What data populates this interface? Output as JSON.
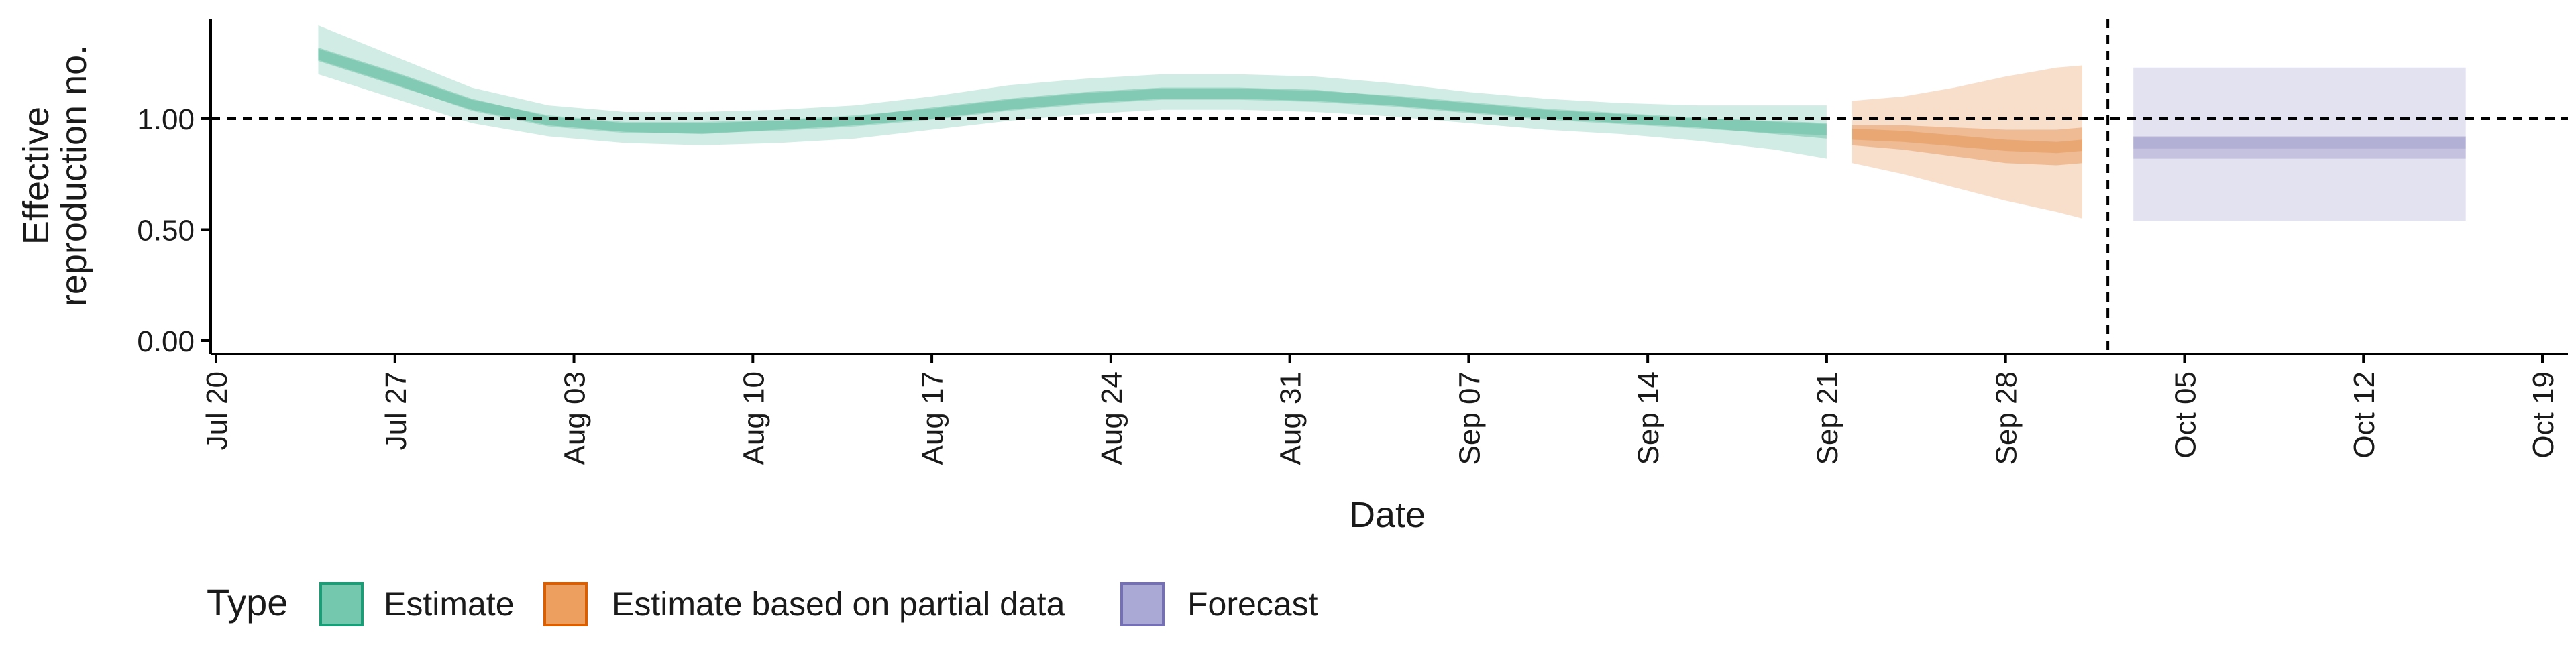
{
  "chart_data": {
    "type": "area",
    "xlabel": "Date",
    "ylabel_lines": [
      "Effective",
      "reproduction no."
    ],
    "y_ticks": [
      "0.00",
      "0.50",
      "1.00"
    ],
    "ylim": [
      0,
      1.45
    ],
    "x_ticks": [
      "Jul 20",
      "Jul 27",
      "Aug 03",
      "Aug 10",
      "Aug 17",
      "Aug 24",
      "Aug 31",
      "Sep 07",
      "Sep 14",
      "Sep 21",
      "Sep 28",
      "Oct 05",
      "Oct 12",
      "Oct 19"
    ],
    "x_range_days": [
      "2020-07-20",
      "2020-10-19"
    ],
    "reference_line_y": 1.0,
    "vertical_line_date": "2020-10-02",
    "grid": false,
    "legend": {
      "title": "Type",
      "position": "bottom-left",
      "entries": [
        "Estimate",
        "Estimate based on partial data",
        "Forecast"
      ]
    },
    "colors": {
      "Estimate": "#1b9e77",
      "Estimate based on partial data": "#d95f02",
      "Forecast": "#7570b3"
    },
    "series": [
      {
        "name": "Estimate",
        "x": [
          "2020-07-24",
          "2020-07-27",
          "2020-07-30",
          "2020-08-02",
          "2020-08-05",
          "2020-08-08",
          "2020-08-11",
          "2020-08-14",
          "2020-08-17",
          "2020-08-20",
          "2020-08-23",
          "2020-08-26",
          "2020-08-29",
          "2020-09-01",
          "2020-09-04",
          "2020-09-07",
          "2020-09-10",
          "2020-09-13",
          "2020-09-16",
          "2020-09-19",
          "2020-09-21"
        ],
        "median": [
          1.29,
          1.18,
          1.06,
          0.99,
          0.96,
          0.96,
          0.97,
          0.99,
          1.02,
          1.06,
          1.09,
          1.11,
          1.11,
          1.1,
          1.08,
          1.05,
          1.02,
          1.0,
          0.98,
          0.96,
          0.95
        ],
        "lower_50": [
          1.26,
          1.15,
          1.04,
          0.97,
          0.94,
          0.93,
          0.95,
          0.97,
          1.0,
          1.04,
          1.07,
          1.09,
          1.09,
          1.08,
          1.06,
          1.03,
          1.0,
          0.98,
          0.96,
          0.93,
          0.91
        ],
        "upper_50": [
          1.32,
          1.21,
          1.09,
          1.01,
          0.98,
          0.98,
          0.99,
          1.01,
          1.05,
          1.09,
          1.12,
          1.14,
          1.14,
          1.13,
          1.1,
          1.07,
          1.04,
          1.02,
          1.0,
          0.99,
          0.98
        ],
        "lower_90": [
          1.2,
          1.09,
          0.98,
          0.92,
          0.89,
          0.88,
          0.89,
          0.91,
          0.95,
          0.99,
          1.02,
          1.04,
          1.04,
          1.03,
          1.01,
          0.98,
          0.95,
          0.93,
          0.9,
          0.86,
          0.82
        ],
        "upper_90": [
          1.42,
          1.28,
          1.14,
          1.06,
          1.03,
          1.03,
          1.04,
          1.06,
          1.1,
          1.15,
          1.18,
          1.2,
          1.2,
          1.19,
          1.16,
          1.12,
          1.09,
          1.07,
          1.06,
          1.06,
          1.06
        ]
      },
      {
        "name": "Estimate based on partial data",
        "x": [
          "2020-09-22",
          "2020-09-24",
          "2020-09-26",
          "2020-09-28",
          "2020-09-30",
          "2020-10-01"
        ],
        "median": [
          0.93,
          0.92,
          0.9,
          0.88,
          0.87,
          0.88
        ],
        "lower_50": [
          0.88,
          0.86,
          0.83,
          0.8,
          0.79,
          0.8
        ],
        "upper_50": [
          0.97,
          0.97,
          0.96,
          0.95,
          0.95,
          0.96
        ],
        "lower_90": [
          0.8,
          0.75,
          0.69,
          0.63,
          0.58,
          0.55
        ],
        "upper_90": [
          1.08,
          1.1,
          1.14,
          1.19,
          1.23,
          1.24
        ]
      },
      {
        "name": "Forecast",
        "x": [
          "2020-10-03",
          "2020-10-16"
        ],
        "median": [
          0.89,
          0.89
        ],
        "lower_50": [
          0.82,
          0.82
        ],
        "upper_50": [
          0.92,
          0.92
        ],
        "lower_90": [
          0.54,
          0.54
        ],
        "upper_90": [
          1.23,
          1.23
        ]
      }
    ]
  }
}
